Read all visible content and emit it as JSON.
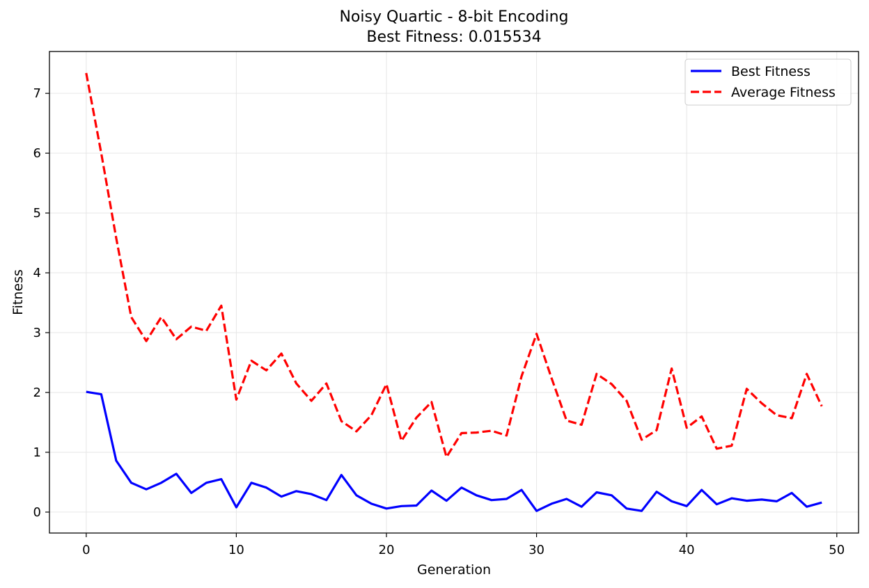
{
  "chart_data": {
    "type": "line",
    "title": "Noisy Quartic - 8-bit Encoding",
    "subtitle": "Best Fitness: 0.015534",
    "xlabel": "Generation",
    "ylabel": "Fitness",
    "xlim": [
      -2.45,
      51.45
    ],
    "ylim": [
      -0.35,
      7.7
    ],
    "xticks": [
      0,
      10,
      20,
      30,
      40,
      50
    ],
    "yticks": [
      0,
      1,
      2,
      3,
      4,
      5,
      6,
      7
    ],
    "grid": true,
    "legend_position": "top-right",
    "x": [
      0,
      1,
      2,
      3,
      4,
      5,
      6,
      7,
      8,
      9,
      10,
      11,
      12,
      13,
      14,
      15,
      16,
      17,
      18,
      19,
      20,
      21,
      22,
      23,
      24,
      25,
      26,
      27,
      28,
      29,
      30,
      31,
      32,
      33,
      34,
      35,
      36,
      37,
      38,
      39,
      40,
      41,
      42,
      43,
      44,
      45,
      46,
      47,
      48,
      49
    ],
    "series": [
      {
        "name": "Best Fitness",
        "color": "#0000ff",
        "style": "solid",
        "values": [
          2.01,
          1.97,
          0.86,
          0.49,
          0.38,
          0.49,
          0.64,
          0.32,
          0.49,
          0.55,
          0.08,
          0.49,
          0.41,
          0.26,
          0.35,
          0.3,
          0.2,
          0.62,
          0.28,
          0.14,
          0.06,
          0.1,
          0.11,
          0.36,
          0.19,
          0.41,
          0.28,
          0.2,
          0.22,
          0.37,
          0.02,
          0.14,
          0.22,
          0.09,
          0.33,
          0.28,
          0.06,
          0.02,
          0.34,
          0.18,
          0.1,
          0.37,
          0.13,
          0.23,
          0.19,
          0.21,
          0.18,
          0.32,
          0.09,
          0.16
        ]
      },
      {
        "name": "Average Fitness",
        "color": "#ff0000",
        "style": "dashed",
        "values": [
          7.34,
          6.0,
          4.58,
          3.26,
          2.86,
          3.26,
          2.89,
          3.1,
          3.03,
          3.45,
          1.88,
          2.53,
          2.37,
          2.65,
          2.15,
          1.86,
          2.15,
          1.52,
          1.35,
          1.62,
          2.14,
          1.19,
          1.58,
          1.84,
          0.92,
          1.32,
          1.33,
          1.36,
          1.28,
          2.27,
          2.98,
          2.24,
          1.53,
          1.46,
          2.31,
          2.14,
          1.86,
          1.21,
          1.37,
          2.4,
          1.41,
          1.6,
          1.06,
          1.11,
          2.06,
          1.82,
          1.62,
          1.57,
          2.31,
          1.77
        ]
      }
    ]
  }
}
